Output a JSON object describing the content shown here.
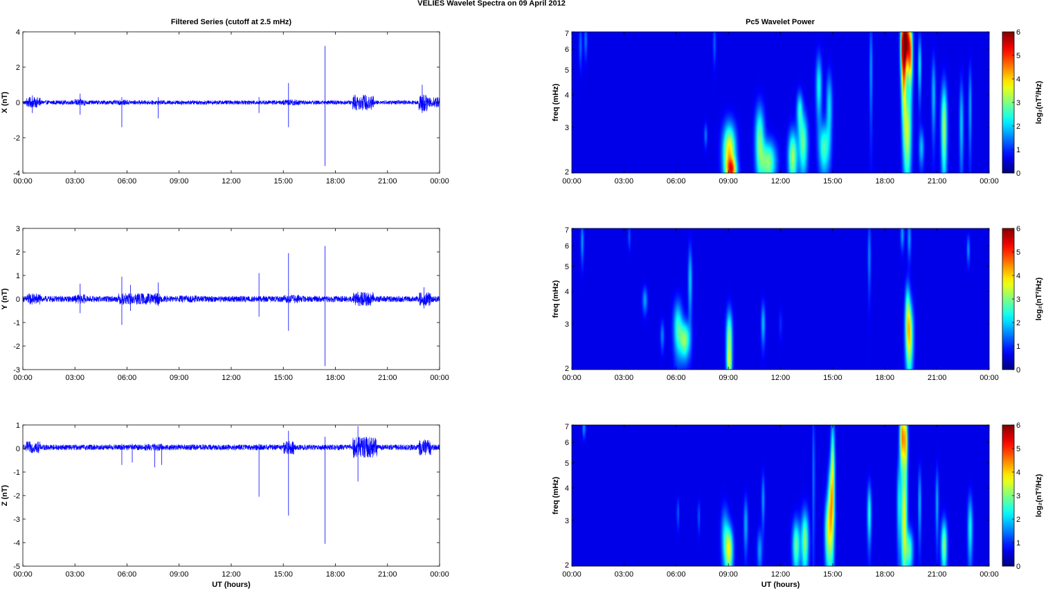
{
  "figure": {
    "suptitle": "VELIES Wavelet Spectra on 09 April     2012",
    "left_title": "Filtered Series (cutoff at 2.5 mHz)",
    "right_title": "Pc5 Wavelet Power",
    "xlabel": "UT (hours)",
    "freq_ylabel": "freq (mHz)",
    "colorbar_label": "log₂(nT²/Hz)"
  },
  "chart_data": [
    {
      "type": "line",
      "ylabel": "X (nT)",
      "xlim": [
        0,
        24
      ],
      "ylim": [
        -4,
        4
      ],
      "xticks": [
        "00:00",
        "03:00",
        "06:00",
        "09:00",
        "12:00",
        "15:00",
        "18:00",
        "21:00",
        "00:00"
      ],
      "yticks": [
        4,
        2,
        0,
        -2,
        -4
      ],
      "series": [
        {
          "color": "#0000ff",
          "baseline": 0.0,
          "noise_amp": 0.12,
          "bursts": [
            [
              0.2,
              1.0,
              0.3
            ],
            [
              3.0,
              3.6,
              0.2
            ],
            [
              5.5,
              6.2,
              0.15
            ],
            [
              11.0,
              13.0,
              0.12
            ],
            [
              15.0,
              16.0,
              0.18
            ],
            [
              19.0,
              20.2,
              0.45
            ],
            [
              22.8,
              23.3,
              0.5
            ],
            [
              23.3,
              24.0,
              0.3
            ]
          ],
          "spikes": [
            [
              0.55,
              0.4,
              -0.6
            ],
            [
              3.3,
              0.5,
              -0.7
            ],
            [
              5.7,
              0.3,
              -1.4
            ],
            [
              7.8,
              0.3,
              -0.9
            ],
            [
              13.6,
              0.3,
              -0.6
            ],
            [
              15.3,
              1.1,
              -1.4
            ],
            [
              17.4,
              3.2,
              -3.6
            ],
            [
              23.0,
              1.0,
              -0.6
            ]
          ]
        }
      ]
    },
    {
      "type": "line",
      "ylabel": "Y (nT)",
      "xlim": [
        0,
        24
      ],
      "ylim": [
        -3,
        3
      ],
      "xticks": [
        "00:00",
        "03:00",
        "06:00",
        "09:00",
        "12:00",
        "15:00",
        "18:00",
        "21:00",
        "00:00"
      ],
      "yticks": [
        3,
        2,
        1,
        0,
        -1,
        -2,
        -3
      ],
      "series": [
        {
          "color": "#0000ff",
          "baseline": 0.0,
          "noise_amp": 0.13,
          "bursts": [
            [
              0.2,
              1.0,
              0.25
            ],
            [
              3.0,
              3.6,
              0.2
            ],
            [
              5.5,
              7.9,
              0.25
            ],
            [
              9.0,
              10.0,
              0.15
            ],
            [
              15.0,
              16.0,
              0.18
            ],
            [
              19.0,
              20.2,
              0.3
            ],
            [
              22.8,
              23.5,
              0.3
            ]
          ],
          "spikes": [
            [
              3.3,
              0.65,
              -0.6
            ],
            [
              5.7,
              0.95,
              -1.1
            ],
            [
              6.2,
              0.6,
              -0.5
            ],
            [
              7.8,
              0.7,
              -0.3
            ],
            [
              13.6,
              1.1,
              -0.75
            ],
            [
              15.3,
              1.95,
              -1.35
            ],
            [
              17.4,
              2.25,
              -2.85
            ],
            [
              23.1,
              0.5,
              -0.4
            ]
          ]
        }
      ]
    },
    {
      "type": "line",
      "ylabel": "Z (nT)",
      "xlabel": "UT (hours)",
      "xlim": [
        0,
        24
      ],
      "ylim": [
        -5,
        1
      ],
      "xticks": [
        "00:00",
        "03:00",
        "06:00",
        "09:00",
        "12:00",
        "15:00",
        "18:00",
        "21:00",
        "00:00"
      ],
      "yticks": [
        1,
        0,
        -1,
        -2,
        -3,
        -4,
        -5
      ],
      "series": [
        {
          "color": "#0000ff",
          "baseline": 0.05,
          "noise_amp": 0.12,
          "bursts": [
            [
              0.2,
              1.0,
              0.25
            ],
            [
              7.0,
              8.0,
              0.15
            ],
            [
              15.0,
              15.6,
              0.3
            ],
            [
              19.0,
              20.4,
              0.45
            ],
            [
              22.8,
              23.5,
              0.35
            ]
          ],
          "spikes": [
            [
              5.7,
              0.2,
              -0.7
            ],
            [
              6.3,
              0.2,
              -0.6
            ],
            [
              7.6,
              0.2,
              -0.8
            ],
            [
              8.0,
              0.2,
              -0.7
            ],
            [
              13.6,
              0.2,
              -2.05
            ],
            [
              15.3,
              0.75,
              -2.85
            ],
            [
              17.4,
              0.5,
              -4.05
            ],
            [
              19.3,
              0.95,
              -1.4
            ]
          ]
        }
      ]
    },
    {
      "type": "heatmap",
      "ylabel": "freq (mHz)",
      "xlim": [
        0,
        24
      ],
      "ylim": [
        2,
        7
      ],
      "yscale": "log",
      "colormap": "jet",
      "zlim": [
        0,
        6
      ],
      "colorbar_ticks": [
        6,
        5,
        4,
        3,
        2,
        1,
        0
      ],
      "xticks": [
        "00:00",
        "03:00",
        "06:00",
        "09:00",
        "12:00",
        "15:00",
        "18:00",
        "21:00",
        "00:00"
      ],
      "yticks": [
        7,
        6,
        5,
        4,
        3,
        2
      ],
      "background": "#00008f",
      "blobs": [
        [
          0.5,
          6.2,
          0.06,
          0.8,
          0.9
        ],
        [
          0.8,
          6.5,
          0.06,
          0.7,
          1.0
        ],
        [
          8.2,
          6.3,
          0.06,
          0.8,
          0.8
        ],
        [
          7.7,
          2.8,
          0.06,
          0.2,
          1.0
        ],
        [
          9.05,
          2.4,
          0.25,
          0.45,
          3.6
        ],
        [
          9.2,
          2.05,
          0.2,
          0.15,
          2.8
        ],
        [
          10.8,
          2.7,
          0.18,
          0.6,
          2.4
        ],
        [
          11.3,
          2.2,
          0.3,
          0.3,
          2.6
        ],
        [
          12.7,
          2.3,
          0.18,
          0.4,
          2.8
        ],
        [
          13.3,
          2.6,
          0.18,
          0.5,
          2.4
        ],
        [
          13.1,
          3.5,
          0.12,
          0.4,
          1.8
        ],
        [
          14.2,
          4.3,
          0.12,
          0.9,
          1.8
        ],
        [
          14.5,
          2.5,
          0.2,
          0.4,
          2.2
        ],
        [
          14.8,
          3.6,
          0.12,
          0.8,
          1.6
        ],
        [
          17.2,
          5.0,
          0.06,
          1.6,
          1.2
        ],
        [
          19.05,
          6.3,
          0.1,
          1.2,
          5.0
        ],
        [
          19.25,
          6.5,
          0.1,
          1.0,
          4.7
        ],
        [
          19.45,
          5.8,
          0.1,
          1.2,
          4.2
        ],
        [
          19.1,
          4.4,
          0.1,
          1.2,
          2.6
        ],
        [
          19.3,
          2.8,
          0.15,
          0.8,
          2.8
        ],
        [
          20.0,
          5.2,
          0.06,
          1.0,
          1.8
        ],
        [
          20.1,
          2.5,
          0.1,
          0.3,
          1.4
        ],
        [
          20.8,
          4.0,
          0.08,
          1.0,
          1.4
        ],
        [
          21.4,
          3.0,
          0.12,
          0.9,
          2.8
        ],
        [
          22.4,
          3.1,
          0.08,
          0.9,
          1.5
        ],
        [
          22.9,
          3.6,
          0.06,
          1.0,
          1.3
        ]
      ]
    },
    {
      "type": "heatmap",
      "ylabel": "freq (mHz)",
      "xlim": [
        0,
        24
      ],
      "ylim": [
        2,
        7
      ],
      "yscale": "log",
      "colormap": "jet",
      "zlim": [
        0,
        6
      ],
      "colorbar_ticks": [
        6,
        5,
        4,
        3,
        2,
        1,
        0
      ],
      "xticks": [
        "00:00",
        "03:00",
        "06:00",
        "09:00",
        "12:00",
        "15:00",
        "18:00",
        "21:00",
        "00:00"
      ],
      "yticks": [
        7,
        6,
        5,
        4,
        3,
        2
      ],
      "background": "#00008f",
      "blobs": [
        [
          0.6,
          6.2,
          0.06,
          0.8,
          1.2
        ],
        [
          3.3,
          6.5,
          0.05,
          0.5,
          0.8
        ],
        [
          4.2,
          3.7,
          0.1,
          0.3,
          1.2
        ],
        [
          5.2,
          2.7,
          0.08,
          0.25,
          1.0
        ],
        [
          6.1,
          2.9,
          0.18,
          0.5,
          2.0
        ],
        [
          6.5,
          2.6,
          0.2,
          0.3,
          2.6
        ],
        [
          6.8,
          4.4,
          0.08,
          1.0,
          1.5
        ],
        [
          9.05,
          2.6,
          0.12,
          0.5,
          2.8
        ],
        [
          9.05,
          2.1,
          0.1,
          0.2,
          1.5
        ],
        [
          11.0,
          3.0,
          0.08,
          0.4,
          1.4
        ],
        [
          12.0,
          3.0,
          0.05,
          0.3,
          0.5
        ],
        [
          17.1,
          5.5,
          0.06,
          1.2,
          1.1
        ],
        [
          19.0,
          6.6,
          0.07,
          0.6,
          1.2
        ],
        [
          19.4,
          6.4,
          0.07,
          0.8,
          1.2
        ],
        [
          19.4,
          2.7,
          0.15,
          0.6,
          3.4
        ],
        [
          19.3,
          3.5,
          0.1,
          0.6,
          1.6
        ],
        [
          22.8,
          5.8,
          0.06,
          0.5,
          1.2
        ]
      ]
    },
    {
      "type": "heatmap",
      "ylabel": "freq (mHz)",
      "xlabel": "UT (hours)",
      "xlim": [
        0,
        24
      ],
      "ylim": [
        2,
        7
      ],
      "yscale": "log",
      "colormap": "jet",
      "zlim": [
        0,
        6
      ],
      "colorbar_ticks": [
        6,
        5,
        4,
        3,
        2,
        1,
        0
      ],
      "xticks": [
        "00:00",
        "03:00",
        "06:00",
        "09:00",
        "12:00",
        "15:00",
        "18:00",
        "21:00",
        "00:00"
      ],
      "yticks": [
        7,
        6,
        5,
        4,
        3,
        2
      ],
      "background": "#00008f",
      "blobs": [
        [
          0.7,
          6.8,
          0.06,
          0.4,
          1.2
        ],
        [
          6.1,
          3.2,
          0.05,
          0.3,
          0.8
        ],
        [
          7.3,
          3.1,
          0.05,
          0.3,
          0.8
        ],
        [
          8.8,
          2.6,
          0.15,
          0.5,
          1.5
        ],
        [
          9.05,
          2.3,
          0.15,
          0.35,
          3.0
        ],
        [
          10.0,
          2.9,
          0.08,
          0.5,
          1.3
        ],
        [
          10.8,
          2.3,
          0.1,
          0.3,
          1.2
        ],
        [
          11.0,
          3.6,
          0.06,
          0.6,
          1.2
        ],
        [
          12.9,
          2.4,
          0.15,
          0.4,
          2.4
        ],
        [
          13.4,
          2.5,
          0.15,
          0.5,
          2.6
        ],
        [
          13.9,
          4.5,
          0.05,
          2.0,
          1.0
        ],
        [
          14.7,
          2.7,
          0.12,
          0.6,
          2.2
        ],
        [
          14.9,
          3.3,
          0.12,
          1.0,
          3.2
        ],
        [
          15.0,
          5.0,
          0.08,
          1.5,
          2.4
        ],
        [
          17.1,
          3.2,
          0.08,
          0.6,
          2.0
        ],
        [
          18.8,
          3.5,
          0.08,
          1.0,
          1.5
        ],
        [
          19.0,
          6.3,
          0.1,
          1.2,
          4.0
        ],
        [
          19.2,
          6.0,
          0.08,
          1.2,
          3.2
        ],
        [
          19.1,
          3.0,
          0.12,
          1.0,
          3.2
        ],
        [
          19.4,
          2.3,
          0.15,
          0.3,
          2.2
        ],
        [
          20.0,
          3.5,
          0.06,
          0.8,
          1.4
        ],
        [
          21.0,
          3.5,
          0.06,
          0.8,
          1.3
        ],
        [
          21.4,
          2.4,
          0.12,
          0.4,
          2.6
        ],
        [
          22.9,
          2.8,
          0.1,
          0.6,
          1.8
        ]
      ]
    }
  ]
}
